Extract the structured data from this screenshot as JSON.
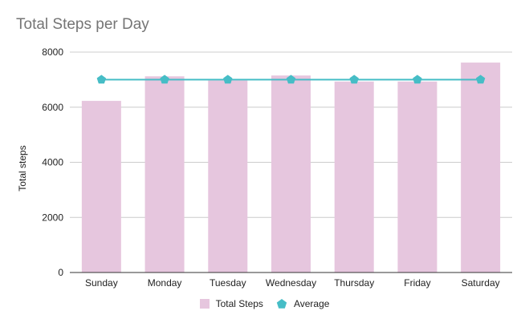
{
  "chart_data": {
    "type": "bar",
    "title": "Total Steps per Day",
    "xlabel": "",
    "ylabel": "Total steps",
    "categories": [
      "Sunday",
      "Monday",
      "Tuesday",
      "Wednesday",
      "Thursday",
      "Friday",
      "Saturday"
    ],
    "series": [
      {
        "name": "Total Steps",
        "type": "bar",
        "color": "#e6c6de",
        "values": [
          6230,
          7120,
          6970,
          7150,
          6930,
          6930,
          7620
        ]
      },
      {
        "name": "Average",
        "type": "line",
        "marker": "pentagon",
        "color": "#46bdc6",
        "values": [
          7000,
          7000,
          7000,
          7000,
          7000,
          7000,
          7000
        ]
      }
    ],
    "ylim": [
      0,
      8000
    ],
    "yticks": [
      "0",
      "2000",
      "4000",
      "6000",
      "8000"
    ],
    "grid": true,
    "legend_position": "bottom"
  }
}
